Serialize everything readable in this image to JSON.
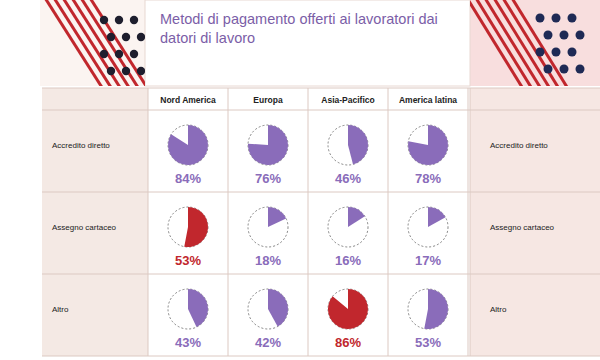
{
  "chart_data": {
    "type": "pie",
    "title": "Metodi di pagamento offerti ai lavoratori dai datori di lavoro",
    "categories": [
      "Nord America",
      "Europa",
      "Asia-Pacifico",
      "America latina"
    ],
    "series": [
      {
        "name": "Accredito diretto",
        "values": [
          84,
          76,
          46,
          78
        ],
        "value_labels": [
          "84%",
          "76%",
          "46%",
          "78%"
        ],
        "colors": [
          "#8a6cba",
          "#8a6cba",
          "#8a6cba",
          "#8a6cba"
        ]
      },
      {
        "name": "Assegno cartaceo",
        "values": [
          53,
          18,
          16,
          17
        ],
        "value_labels": [
          "53%",
          "18%",
          "16%",
          "17%"
        ],
        "colors": [
          "#c1272d",
          "#8a6cba",
          "#8a6cba",
          "#8a6cba"
        ]
      },
      {
        "name": "Altro",
        "values": [
          43,
          42,
          86,
          53
        ],
        "value_labels": [
          "43%",
          "42%",
          "86%",
          "53%"
        ],
        "colors": [
          "#8a6cba",
          "#8a6cba",
          "#c1272d",
          "#8a6cba"
        ]
      }
    ],
    "data_labels": true
  }
}
